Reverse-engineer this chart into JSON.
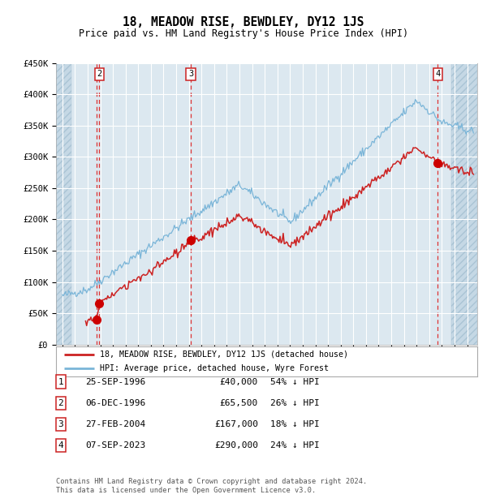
{
  "title": "18, MEADOW RISE, BEWDLEY, DY12 1JS",
  "subtitle": "Price paid vs. HM Land Registry's House Price Index (HPI)",
  "ylim": [
    0,
    450000
  ],
  "yticks": [
    0,
    50000,
    100000,
    150000,
    200000,
    250000,
    300000,
    350000,
    400000,
    450000
  ],
  "ytick_labels": [
    "£0",
    "£50K",
    "£100K",
    "£150K",
    "£200K",
    "£250K",
    "£300K",
    "£350K",
    "£400K",
    "£450K"
  ],
  "xlim_start": 1993.5,
  "xlim_end": 2026.8,
  "hpi_color": "#7ab5d8",
  "price_color": "#cc2222",
  "sale_marker_color": "#cc0000",
  "bg_color": "#dce8f0",
  "vline_color": "#dd3333",
  "grid_color": "#ffffff",
  "hatch_left_end": 1994.75,
  "hatch_right_start": 2024.75,
  "sales": [
    {
      "label": "1",
      "date": 1996.73,
      "price": 40000
    },
    {
      "label": "2",
      "date": 1996.92,
      "price": 65500
    },
    {
      "label": "3",
      "date": 2004.16,
      "price": 167000
    },
    {
      "label": "4",
      "date": 2023.68,
      "price": 290000
    }
  ],
  "table_rows": [
    {
      "num": "1",
      "date": "25-SEP-1996",
      "price": "£40,000",
      "hpi": "54% ↓ HPI"
    },
    {
      "num": "2",
      "date": "06-DEC-1996",
      "price": "£65,500",
      "hpi": "26% ↓ HPI"
    },
    {
      "num": "3",
      "date": "27-FEB-2004",
      "price": "£167,000",
      "hpi": "18% ↓ HPI"
    },
    {
      "num": "4",
      "date": "07-SEP-2023",
      "price": "£290,000",
      "hpi": "24% ↓ HPI"
    }
  ],
  "legend_line1": "18, MEADOW RISE, BEWDLEY, DY12 1JS (detached house)",
  "legend_line2": "HPI: Average price, detached house, Wyre Forest",
  "footer1": "Contains HM Land Registry data © Crown copyright and database right 2024.",
  "footer2": "This data is licensed under the Open Government Licence v3.0."
}
